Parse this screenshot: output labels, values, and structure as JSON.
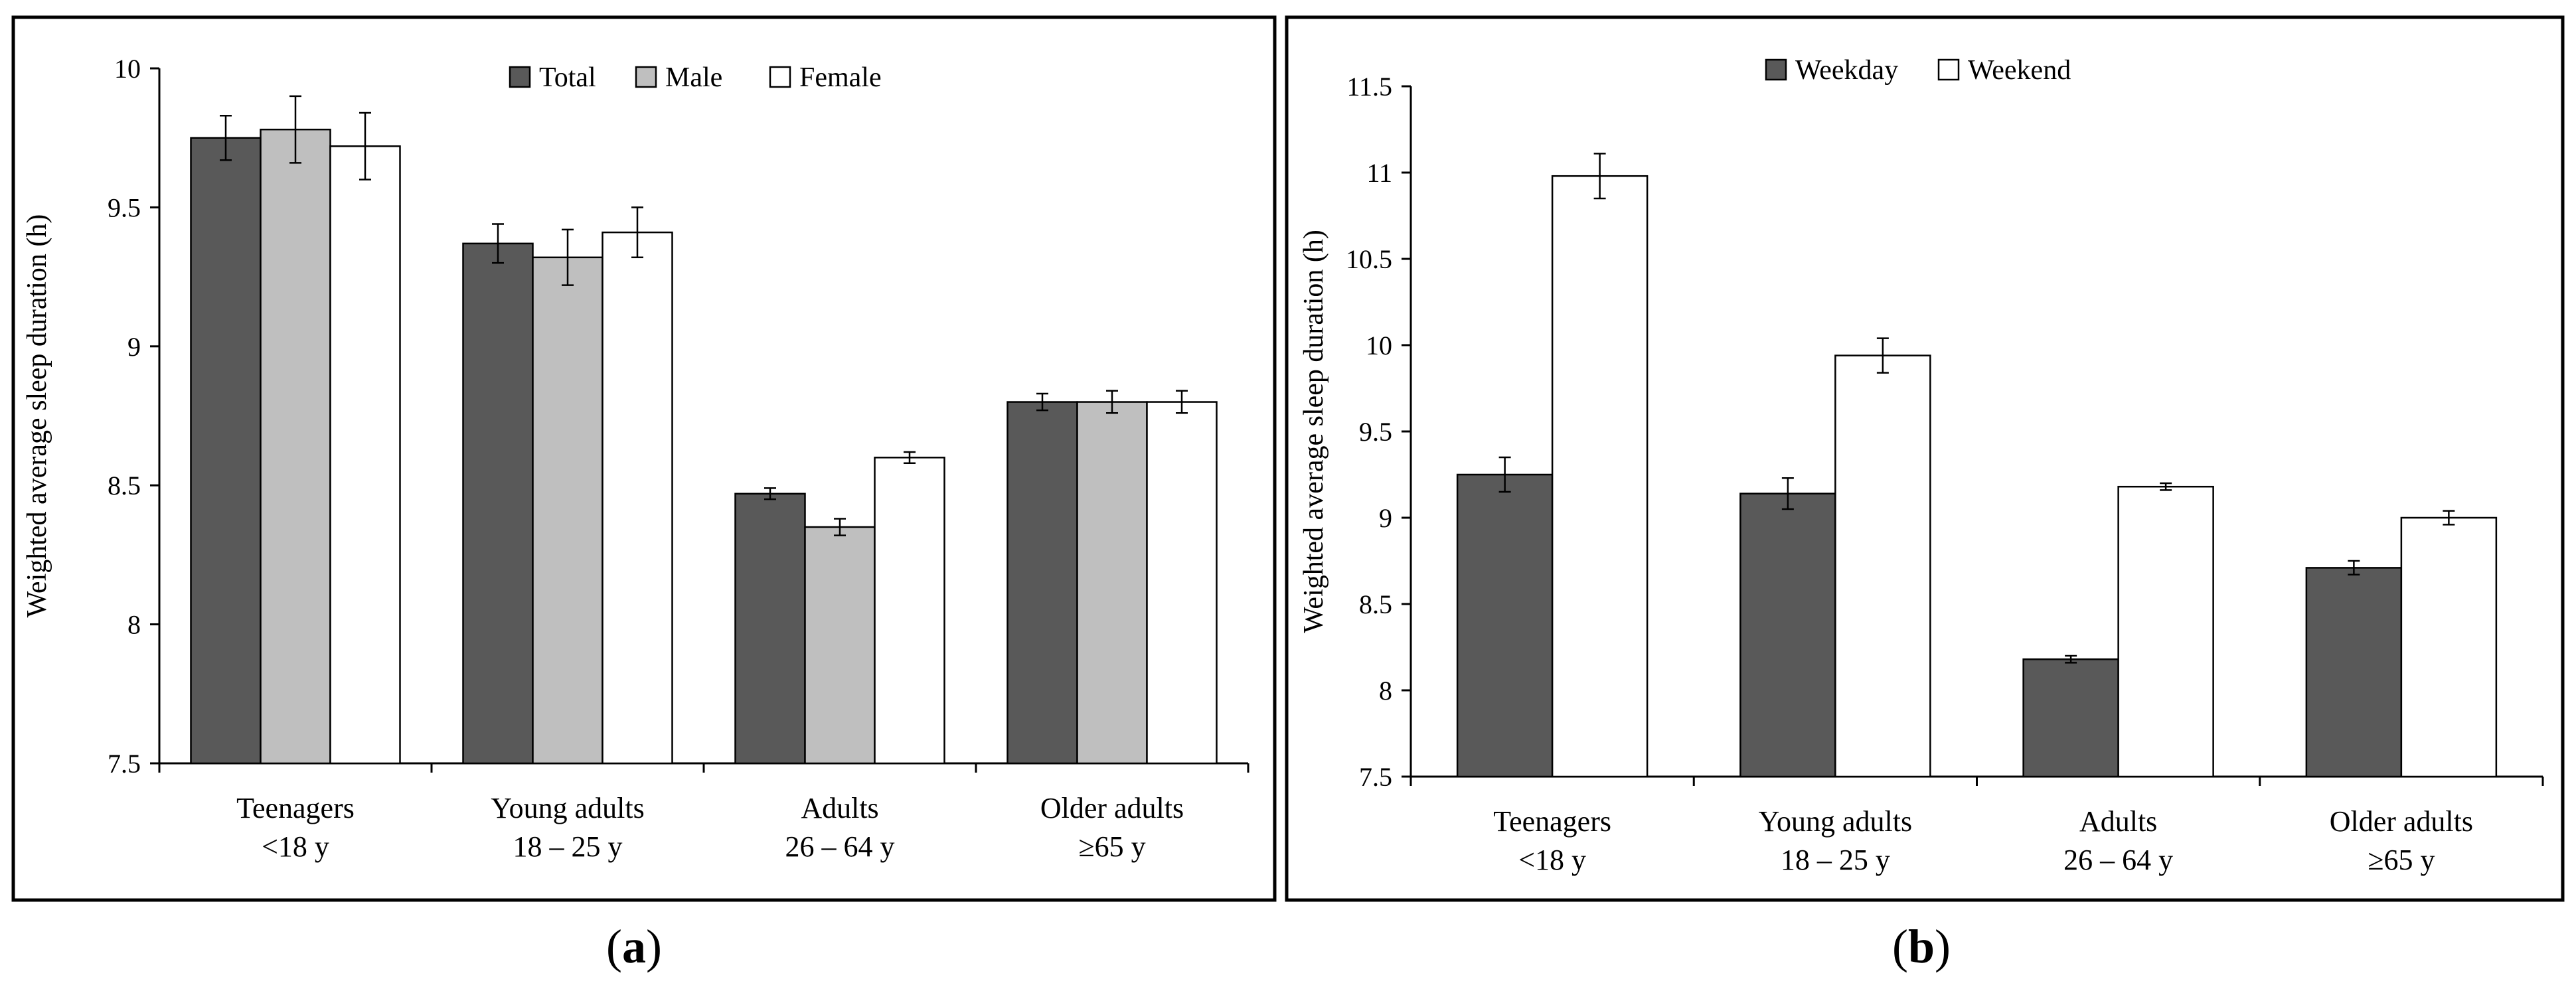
{
  "figure": {
    "caption_a": "a",
    "caption_b": "b"
  },
  "chart_data": [
    {
      "type": "bar",
      "panel": "a",
      "title": "",
      "xlabel": "",
      "ylabel": "Weighted average sleep duration (h)",
      "ylim": [
        7.5,
        10
      ],
      "yticks": [
        7.5,
        8,
        8.5,
        9,
        9.5,
        10
      ],
      "ytick_labels": [
        "7.5",
        "8",
        "8.5",
        "9",
        "9.5",
        "10"
      ],
      "categories": [
        {
          "line1": "Teenagers",
          "line2": "<18 y"
        },
        {
          "line1": "Young adults",
          "line2": "18 – 25 y"
        },
        {
          "line1": "Adults",
          "line2": "26 – 64 y"
        },
        {
          "line1": "Older adults",
          "line2": "≥65 y"
        }
      ],
      "legend_position": "top-center",
      "series": [
        {
          "name": "Total",
          "color": "#595959",
          "values": [
            9.75,
            9.37,
            8.47,
            8.8
          ],
          "errors": [
            0.08,
            0.07,
            0.02,
            0.03
          ]
        },
        {
          "name": "Male",
          "color": "#bfbfbf",
          "values": [
            9.78,
            9.32,
            8.35,
            8.8
          ],
          "errors": [
            0.12,
            0.1,
            0.03,
            0.04
          ]
        },
        {
          "name": "Female",
          "color": "#ffffff",
          "values": [
            9.72,
            9.41,
            8.6,
            8.8
          ],
          "errors": [
            0.12,
            0.09,
            0.02,
            0.04
          ]
        }
      ]
    },
    {
      "type": "bar",
      "panel": "b",
      "title": "",
      "xlabel": "",
      "ylabel": "Weighted average sleep duration (h)",
      "ylim": [
        7.5,
        11.5
      ],
      "yticks": [
        7.5,
        8,
        8.5,
        9,
        9.5,
        10,
        10.5,
        11,
        11.5
      ],
      "ytick_labels": [
        "7.5",
        "8",
        "8.5",
        "9",
        "9.5",
        "10",
        "10.5",
        "11",
        "11.5"
      ],
      "categories": [
        {
          "line1": "Teenagers",
          "line2": "<18 y"
        },
        {
          "line1": "Young adults",
          "line2": "18 – 25 y"
        },
        {
          "line1": "Adults",
          "line2": "26 – 64 y"
        },
        {
          "line1": "Older adults",
          "line2": "≥65 y"
        }
      ],
      "legend_position": "top-center",
      "series": [
        {
          "name": "Weekday",
          "color": "#595959",
          "values": [
            9.25,
            9.14,
            8.18,
            8.71
          ],
          "errors": [
            0.1,
            0.09,
            0.02,
            0.04
          ]
        },
        {
          "name": "Weekend",
          "color": "#ffffff",
          "values": [
            10.98,
            9.94,
            9.18,
            9.0
          ],
          "errors": [
            0.13,
            0.1,
            0.02,
            0.04
          ]
        }
      ]
    }
  ]
}
